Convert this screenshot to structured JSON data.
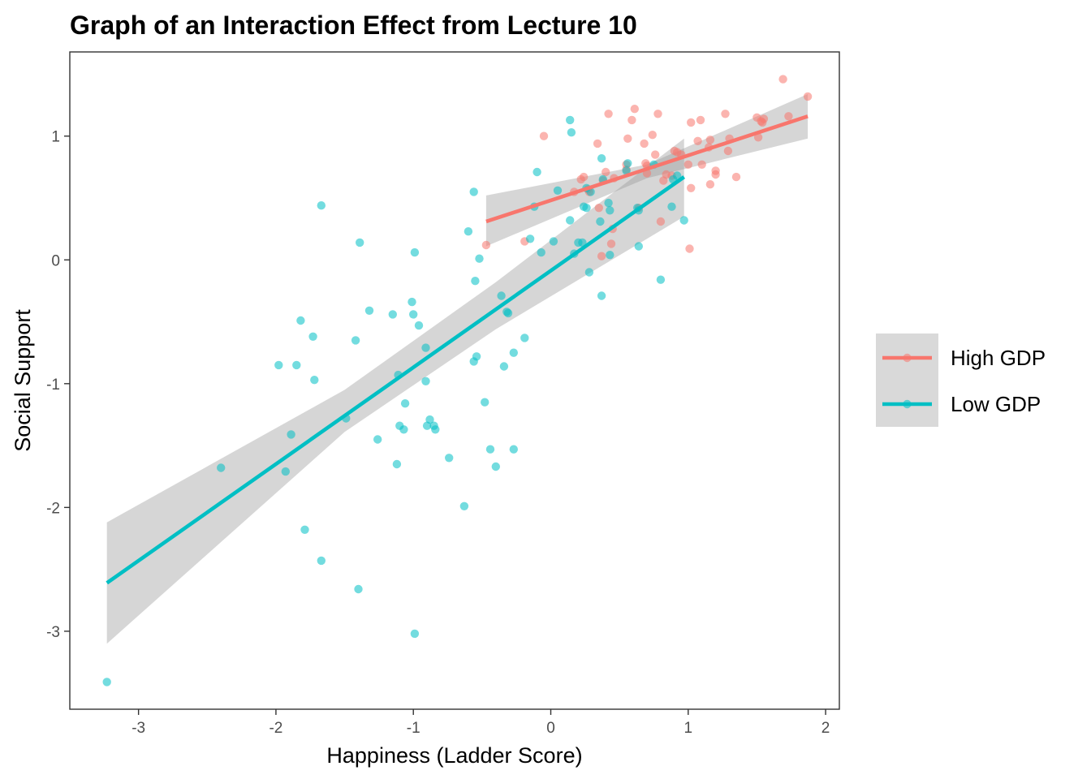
{
  "chart_data": {
    "type": "scatter",
    "title": "Graph of an Interaction Effect from Lecture 10",
    "xlabel": "Happiness (Ladder Score)",
    "ylabel": "Social Support",
    "xlim": [
      -3.5,
      2.1
    ],
    "ylim": [
      -3.63,
      1.68
    ],
    "x_ticks": [
      -3,
      -2,
      -1,
      0,
      1,
      2
    ],
    "y_ticks": [
      -3,
      -2,
      -1,
      0,
      1
    ],
    "x_tick_labels": [
      "-3",
      "-2",
      "-1",
      "0",
      "1",
      "2"
    ],
    "y_tick_labels": [
      "-3",
      "-2",
      "-1",
      "0",
      "1"
    ],
    "grid": false,
    "legend_position": "right",
    "series": [
      {
        "name": "High GDP",
        "color": "#F8766D",
        "fit": {
          "x0": -0.47,
          "y0": 0.31,
          "x1": 1.87,
          "y1": 1.16
        },
        "ci_band": {
          "lower": [
            [
              -0.47,
              0.11
            ],
            [
              0.7,
              0.66
            ],
            [
              1.87,
              0.98
            ]
          ],
          "upper": [
            [
              -0.47,
              0.52
            ],
            [
              0.7,
              0.77
            ],
            [
              1.87,
              1.34
            ]
          ]
        },
        "points": [
          [
            -0.47,
            0.12
          ],
          [
            -0.05,
            1.0
          ],
          [
            -0.19,
            0.15
          ],
          [
            0.17,
            0.55
          ],
          [
            0.22,
            0.65
          ],
          [
            0.24,
            0.67
          ],
          [
            0.27,
            0.57
          ],
          [
            0.34,
            0.94
          ],
          [
            0.35,
            0.42
          ],
          [
            0.38,
            0.64
          ],
          [
            0.4,
            0.71
          ],
          [
            0.42,
            1.18
          ],
          [
            0.44,
            0.13
          ],
          [
            0.45,
            0.25
          ],
          [
            0.46,
            0.66
          ],
          [
            0.55,
            0.73
          ],
          [
            0.56,
            0.98
          ],
          [
            0.59,
            1.13
          ],
          [
            0.61,
            1.22
          ],
          [
            0.64,
            0.42
          ],
          [
            0.68,
            0.94
          ],
          [
            0.69,
            0.78
          ],
          [
            0.7,
            0.7
          ],
          [
            0.74,
            1.01
          ],
          [
            0.76,
            0.85
          ],
          [
            0.78,
            1.18
          ],
          [
            0.8,
            0.31
          ],
          [
            0.82,
            0.64
          ],
          [
            0.84,
            0.69
          ],
          [
            0.88,
            0.68
          ],
          [
            0.9,
            0.88
          ],
          [
            0.92,
            0.87
          ],
          [
            0.95,
            0.85
          ],
          [
            1.0,
            0.77
          ],
          [
            1.01,
            0.09
          ],
          [
            1.02,
            1.11
          ],
          [
            1.02,
            0.58
          ],
          [
            1.07,
            0.96
          ],
          [
            1.09,
            1.13
          ],
          [
            1.1,
            0.77
          ],
          [
            1.15,
            0.91
          ],
          [
            1.16,
            0.61
          ],
          [
            1.16,
            0.97
          ],
          [
            1.2,
            0.69
          ],
          [
            1.2,
            0.72
          ],
          [
            1.27,
            1.18
          ],
          [
            1.29,
            0.88
          ],
          [
            1.3,
            0.98
          ],
          [
            1.35,
            0.67
          ],
          [
            1.5,
            1.15
          ],
          [
            1.51,
            0.99
          ],
          [
            1.53,
            1.12
          ],
          [
            1.54,
            1.11
          ],
          [
            1.55,
            1.14
          ],
          [
            1.69,
            1.46
          ],
          [
            1.73,
            1.16
          ],
          [
            1.87,
            1.32
          ],
          [
            0.37,
            0.03
          ],
          [
            0.28,
            0.55
          ],
          [
            0.55,
            0.77
          ],
          [
            0.7,
            0.76
          ]
        ]
      },
      {
        "name": "Low GDP",
        "color": "#00BFC4",
        "fit": {
          "x0": -3.23,
          "y0": -2.61,
          "x1": 0.97,
          "y1": 0.67
        },
        "ci_band": {
          "lower": [
            [
              -3.23,
              -3.1
            ],
            [
              -1.5,
              -1.39
            ],
            [
              -0.4,
              -0.56
            ],
            [
              0.97,
              0.35
            ]
          ],
          "upper": [
            [
              -3.23,
              -2.12
            ],
            [
              -1.5,
              -1.05
            ],
            [
              -0.4,
              -0.18
            ],
            [
              0.97,
              0.98
            ]
          ]
        },
        "points": [
          [
            -3.23,
            -3.41
          ],
          [
            -2.4,
            -1.68
          ],
          [
            -1.98,
            -0.85
          ],
          [
            -1.93,
            -1.71
          ],
          [
            -1.89,
            -1.41
          ],
          [
            -1.85,
            -0.85
          ],
          [
            -1.82,
            -0.49
          ],
          [
            -1.79,
            -2.18
          ],
          [
            -1.73,
            -0.62
          ],
          [
            -1.72,
            -0.97
          ],
          [
            -1.67,
            0.44
          ],
          [
            -1.67,
            -2.43
          ],
          [
            -1.49,
            -1.28
          ],
          [
            -1.42,
            -0.65
          ],
          [
            -1.4,
            -2.66
          ],
          [
            -1.39,
            0.14
          ],
          [
            -1.32,
            -0.41
          ],
          [
            -1.26,
            -1.45
          ],
          [
            -1.15,
            -0.44
          ],
          [
            -1.12,
            -1.65
          ],
          [
            -1.11,
            -0.93
          ],
          [
            -1.1,
            -1.34
          ],
          [
            -1.07,
            -1.37
          ],
          [
            -1.06,
            -1.16
          ],
          [
            -1.01,
            -0.34
          ],
          [
            -1.0,
            -0.44
          ],
          [
            -0.99,
            -3.02
          ],
          [
            -0.99,
            0.06
          ],
          [
            -0.96,
            -0.53
          ],
          [
            -0.91,
            -0.71
          ],
          [
            -0.91,
            -0.98
          ],
          [
            -0.9,
            -1.34
          ],
          [
            -0.88,
            -1.29
          ],
          [
            -0.85,
            -1.34
          ],
          [
            -0.84,
            -1.37
          ],
          [
            -0.74,
            -1.6
          ],
          [
            -0.63,
            -1.99
          ],
          [
            -0.6,
            0.23
          ],
          [
            -0.56,
            0.55
          ],
          [
            -0.56,
            -0.82
          ],
          [
            -0.55,
            -0.17
          ],
          [
            -0.54,
            -0.78
          ],
          [
            -0.52,
            0.01
          ],
          [
            -0.48,
            -1.15
          ],
          [
            -0.44,
            -1.53
          ],
          [
            -0.4,
            -1.67
          ],
          [
            -0.36,
            -0.29
          ],
          [
            -0.34,
            -0.86
          ],
          [
            -0.32,
            -0.42
          ],
          [
            -0.31,
            -0.43
          ],
          [
            -0.27,
            -0.75
          ],
          [
            -0.27,
            -1.53
          ],
          [
            -0.19,
            -0.63
          ],
          [
            -0.15,
            0.17
          ],
          [
            -0.12,
            0.43
          ],
          [
            -0.1,
            0.71
          ],
          [
            -0.07,
            0.06
          ],
          [
            0.02,
            0.15
          ],
          [
            0.05,
            0.56
          ],
          [
            0.14,
            0.32
          ],
          [
            0.14,
            1.13
          ],
          [
            0.15,
            1.03
          ],
          [
            0.17,
            0.05
          ],
          [
            0.2,
            0.14
          ],
          [
            0.23,
            0.14
          ],
          [
            0.24,
            0.43
          ],
          [
            0.26,
            0.42
          ],
          [
            0.26,
            0.58
          ],
          [
            0.28,
            -0.1
          ],
          [
            0.29,
            0.55
          ],
          [
            0.36,
            0.31
          ],
          [
            0.37,
            -0.29
          ],
          [
            0.37,
            0.82
          ],
          [
            0.38,
            0.65
          ],
          [
            0.42,
            0.46
          ],
          [
            0.43,
            0.4
          ],
          [
            0.43,
            0.04
          ],
          [
            0.55,
            0.72
          ],
          [
            0.56,
            0.78
          ],
          [
            0.63,
            0.42
          ],
          [
            0.64,
            0.11
          ],
          [
            0.64,
            0.4
          ],
          [
            0.75,
            0.77
          ],
          [
            0.8,
            -0.16
          ],
          [
            0.88,
            0.43
          ],
          [
            0.89,
            0.65
          ],
          [
            0.92,
            0.68
          ],
          [
            0.97,
            0.32
          ]
        ]
      }
    ]
  }
}
